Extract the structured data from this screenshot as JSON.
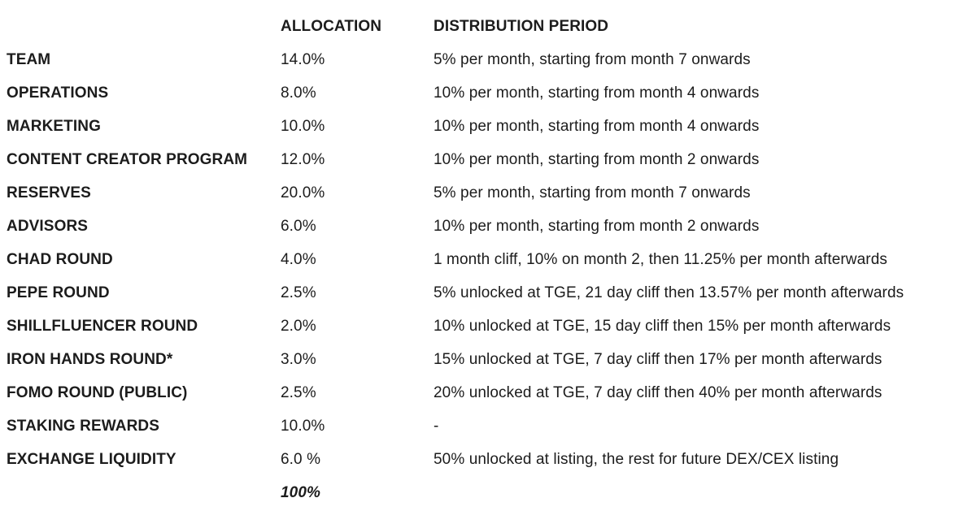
{
  "table": {
    "headers": {
      "allocation": "ALLOCATION",
      "distribution": "DISTRIBUTION PERIOD"
    },
    "rows": [
      {
        "name": "TEAM",
        "allocation": "14.0%",
        "distribution": "5% per month, starting from month 7 onwards"
      },
      {
        "name": "OPERATIONS",
        "allocation": "8.0%",
        "distribution": "10% per month, starting from month 4 onwards"
      },
      {
        "name": "MARKETING",
        "allocation": "10.0%",
        "distribution": "10% per month, starting from month 4 onwards"
      },
      {
        "name": "CONTENT CREATOR PROGRAM",
        "allocation": "12.0%",
        "distribution": "10% per month, starting from month 2 onwards"
      },
      {
        "name": "RESERVES",
        "allocation": "20.0%",
        "distribution": "5% per month, starting from month 7 onwards"
      },
      {
        "name": "ADVISORS",
        "allocation": "6.0%",
        "distribution": "10% per month, starting from month 2 onwards"
      },
      {
        "name": "CHAD ROUND",
        "allocation": "4.0%",
        "distribution": "1 month cliff, 10% on month 2, then 11.25% per month afterwards"
      },
      {
        "name": "PEPE ROUND",
        "allocation": "2.5%",
        "distribution": "5% unlocked at TGE, 21 day cliff then 13.57% per month afterwards"
      },
      {
        "name": "SHILLFLUENCER ROUND",
        "allocation": "2.0%",
        "distribution": "10% unlocked at TGE, 15 day cliff then 15% per month afterwards"
      },
      {
        "name": "IRON HANDS ROUND*",
        "allocation": "3.0%",
        "distribution": "15% unlocked at TGE, 7 day cliff then 17% per month afterwards"
      },
      {
        "name": "FOMO ROUND (PUBLIC)",
        "allocation": "2.5%",
        "distribution": "20% unlocked at TGE, 7 day cliff then 40% per month afterwards"
      },
      {
        "name": "STAKING REWARDS",
        "allocation": "10.0%",
        "distribution": "-"
      },
      {
        "name": "EXCHANGE LIQUIDITY",
        "allocation": "6.0 %",
        "distribution": "50% unlocked at listing, the rest for future DEX/CEX listing"
      }
    ],
    "total": "100%"
  },
  "colors": {
    "text": "#1c1c1c",
    "background": "#ffffff"
  }
}
